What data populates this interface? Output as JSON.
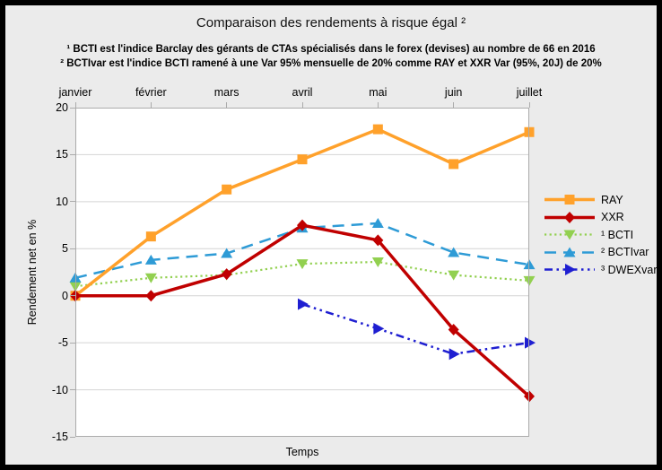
{
  "title": "Comparaison des rendements à risque égal ²",
  "footnotes": [
    "¹ BCTI est l'indice Barclay des gérants de CTAs spécialisés dans le forex (devises) au nombre de 66 en 2016",
    "² BCTIvar est l'indice BCTI ramené à une Var 95% mensuelle de 20% comme RAY et XXR Var (95%, 20J) de 20%"
  ],
  "chart_data": {
    "type": "line",
    "title": "Comparaison des rendements à risque égal ²",
    "xlabel": "Temps",
    "ylabel": "Rendement net en %",
    "ylim": [
      -15,
      20
    ],
    "y_ticks": [
      20,
      15,
      10,
      5,
      0,
      -5,
      -10,
      -15
    ],
    "grid": true,
    "legend_position": "right",
    "categories": [
      "janvier",
      "février",
      "mars",
      "avril",
      "mai",
      "juin",
      "juillet"
    ],
    "series": [
      {
        "name": "RAY",
        "color": "#FFA12B",
        "marker": "square",
        "line": "solid",
        "width": 3.5,
        "values": [
          0,
          6.3,
          11.3,
          14.5,
          17.7,
          14.0,
          17.4
        ]
      },
      {
        "name": "XXR",
        "color": "#C00000",
        "marker": "diamond",
        "line": "solid",
        "width": 3.5,
        "values": [
          0,
          0,
          2.3,
          7.5,
          5.9,
          -3.6,
          -10.7
        ]
      },
      {
        "name": "¹ BCTI",
        "color": "#92D050",
        "marker": "triangle-down",
        "line": "dotted",
        "width": 2.2,
        "values": [
          1.0,
          1.9,
          2.2,
          3.4,
          3.6,
          2.2,
          1.6
        ]
      },
      {
        "name": "² BCTIvar",
        "color": "#2E9BD6",
        "marker": "triangle-up",
        "line": "dashed",
        "width": 2.5,
        "values": [
          1.9,
          3.8,
          4.5,
          7.2,
          7.7,
          4.6,
          3.3
        ]
      },
      {
        "name": "³ DWEXvar",
        "color": "#1F1FD1",
        "marker": "triangle-right",
        "line": "dashdot",
        "width": 2.5,
        "values": [
          null,
          null,
          null,
          -0.9,
          -3.5,
          -6.2,
          -5.0
        ]
      }
    ]
  },
  "colors": {
    "background": "#EBEBEB",
    "plot_background": "#FFFFFF",
    "gridline": "#D4D4D4",
    "frame": "#ABABAB",
    "text": "#000000",
    "outer_border": "#000000"
  }
}
